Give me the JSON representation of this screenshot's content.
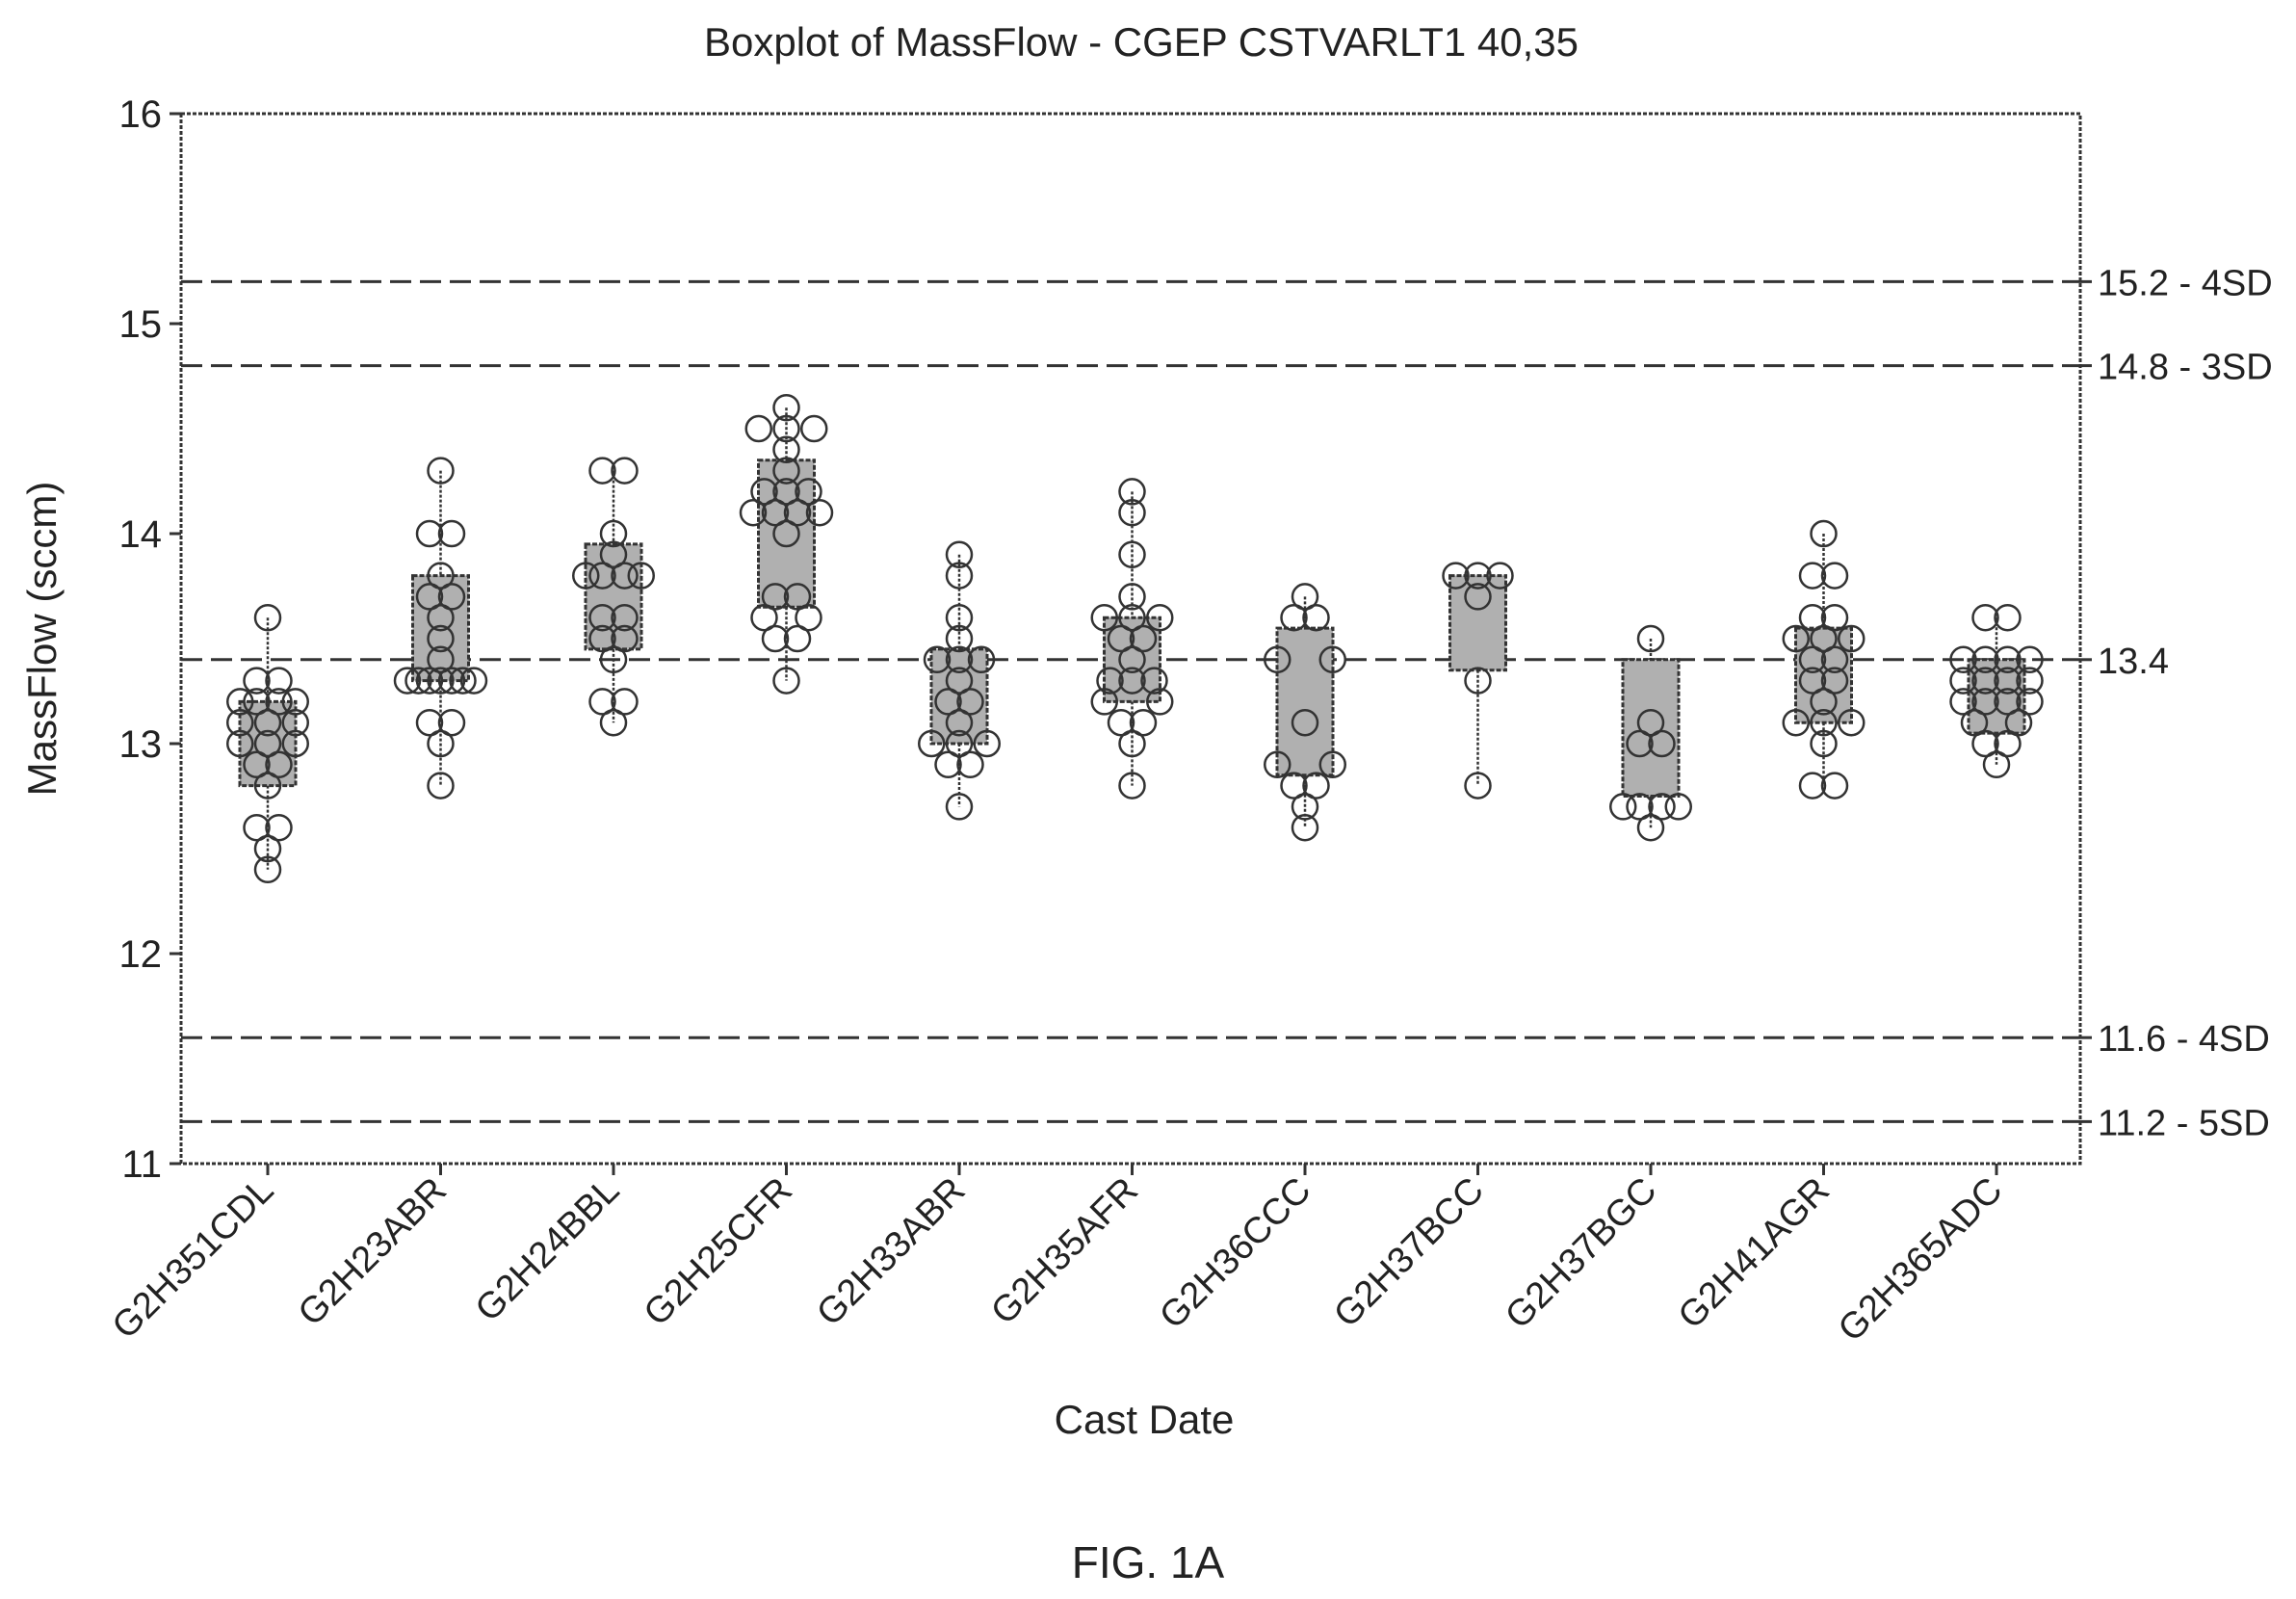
{
  "figure_label": "FIG. 1A",
  "chart_data": {
    "type": "boxplot",
    "title": "Boxplot of MassFlow - CGEP CSTVARLT1 40,35",
    "xlabel": "Cast Date",
    "ylabel": "MassFlow (sccm)",
    "ylim": [
      11,
      16
    ],
    "yticks": [
      11,
      12,
      13,
      14,
      15,
      16
    ],
    "grid": false,
    "categories": [
      "G2H351CDL",
      "G2H23ABR",
      "G2H24BBL",
      "G2H25CFR",
      "G2H33ABR",
      "G2H35AFR",
      "G2H36CCC",
      "G2H37BCC",
      "G2H37BGC",
      "G2H41AGR",
      "G2H365ADC"
    ],
    "reference_lines": [
      {
        "value": 15.2,
        "label": "15.2 - 4SD"
      },
      {
        "value": 14.8,
        "label": "14.8 - 3SD"
      },
      {
        "value": 13.4,
        "label": "13.4"
      },
      {
        "value": 11.6,
        "label": "11.6 - 4SD"
      },
      {
        "value": 11.2,
        "label": "11.2 - 5SD"
      }
    ],
    "boxes": [
      {
        "q1": 12.8,
        "q3": 13.2,
        "whisker_low": 12.4,
        "whisker_high": 13.6,
        "points": [
          [
            0,
            13.6
          ],
          [
            -0.1,
            13.3
          ],
          [
            0.1,
            13.3
          ],
          [
            -0.25,
            13.2
          ],
          [
            -0.1,
            13.2
          ],
          [
            0.1,
            13.2
          ],
          [
            0.25,
            13.2
          ],
          [
            -0.25,
            13.1
          ],
          [
            0,
            13.1
          ],
          [
            0.25,
            13.1
          ],
          [
            -0.25,
            13.0
          ],
          [
            0,
            13.0
          ],
          [
            0.25,
            13.0
          ],
          [
            -0.1,
            12.9
          ],
          [
            0.1,
            12.9
          ],
          [
            0,
            12.8
          ],
          [
            -0.1,
            12.6
          ],
          [
            0.1,
            12.6
          ],
          [
            0,
            12.5
          ],
          [
            0,
            12.4
          ]
        ]
      },
      {
        "q1": 13.3,
        "q3": 13.8,
        "whisker_low": 12.8,
        "whisker_high": 14.3,
        "points": [
          [
            0,
            14.3
          ],
          [
            -0.1,
            14.0
          ],
          [
            0.1,
            14.0
          ],
          [
            0,
            13.8
          ],
          [
            -0.1,
            13.7
          ],
          [
            0.1,
            13.7
          ],
          [
            0,
            13.6
          ],
          [
            0,
            13.5
          ],
          [
            0,
            13.4
          ],
          [
            -0.3,
            13.3
          ],
          [
            -0.2,
            13.3
          ],
          [
            -0.1,
            13.3
          ],
          [
            0,
            13.3
          ],
          [
            0.1,
            13.3
          ],
          [
            0.2,
            13.3
          ],
          [
            0.3,
            13.3
          ],
          [
            -0.1,
            13.1
          ],
          [
            0.1,
            13.1
          ],
          [
            0,
            13.0
          ],
          [
            0,
            12.8
          ]
        ]
      },
      {
        "q1": 13.45,
        "q3": 13.95,
        "whisker_low": 13.1,
        "whisker_high": 14.3,
        "points": [
          [
            -0.1,
            14.3
          ],
          [
            0.1,
            14.3
          ],
          [
            0,
            14.0
          ],
          [
            0,
            13.9
          ],
          [
            -0.25,
            13.8
          ],
          [
            -0.1,
            13.8
          ],
          [
            0.1,
            13.8
          ],
          [
            0.25,
            13.8
          ],
          [
            -0.1,
            13.6
          ],
          [
            0.1,
            13.6
          ],
          [
            -0.1,
            13.5
          ],
          [
            0.1,
            13.5
          ],
          [
            0,
            13.4
          ],
          [
            -0.1,
            13.2
          ],
          [
            0.1,
            13.2
          ],
          [
            0,
            13.1
          ]
        ]
      },
      {
        "q1": 13.65,
        "q3": 14.35,
        "whisker_low": 13.3,
        "whisker_high": 14.6,
        "points": [
          [
            0,
            14.6
          ],
          [
            -0.25,
            14.5
          ],
          [
            0,
            14.5
          ],
          [
            0.25,
            14.5
          ],
          [
            0,
            14.4
          ],
          [
            0,
            14.3
          ],
          [
            -0.2,
            14.2
          ],
          [
            0,
            14.2
          ],
          [
            0.2,
            14.2
          ],
          [
            -0.3,
            14.1
          ],
          [
            -0.1,
            14.1
          ],
          [
            0.1,
            14.1
          ],
          [
            0.3,
            14.1
          ],
          [
            0,
            14.0
          ],
          [
            -0.1,
            13.7
          ],
          [
            0.1,
            13.7
          ],
          [
            -0.2,
            13.6
          ],
          [
            0.2,
            13.6
          ],
          [
            -0.1,
            13.5
          ],
          [
            0.1,
            13.5
          ],
          [
            0,
            13.3
          ]
        ]
      },
      {
        "q1": 13.0,
        "q3": 13.45,
        "whisker_low": 12.7,
        "whisker_high": 13.9,
        "points": [
          [
            0,
            13.9
          ],
          [
            0,
            13.8
          ],
          [
            0,
            13.6
          ],
          [
            0,
            13.5
          ],
          [
            -0.2,
            13.4
          ],
          [
            0,
            13.4
          ],
          [
            0.2,
            13.4
          ],
          [
            0,
            13.3
          ],
          [
            -0.1,
            13.2
          ],
          [
            0.1,
            13.2
          ],
          [
            0,
            13.1
          ],
          [
            -0.25,
            13.0
          ],
          [
            0,
            13.0
          ],
          [
            0.25,
            13.0
          ],
          [
            -0.1,
            12.9
          ],
          [
            0.1,
            12.9
          ],
          [
            0,
            12.7
          ]
        ]
      },
      {
        "q1": 13.2,
        "q3": 13.6,
        "whisker_low": 12.8,
        "whisker_high": 14.2,
        "points": [
          [
            0,
            14.2
          ],
          [
            0,
            14.1
          ],
          [
            0,
            13.9
          ],
          [
            0,
            13.7
          ],
          [
            -0.25,
            13.6
          ],
          [
            0,
            13.6
          ],
          [
            0.25,
            13.6
          ],
          [
            -0.1,
            13.5
          ],
          [
            0.1,
            13.5
          ],
          [
            0,
            13.4
          ],
          [
            -0.2,
            13.3
          ],
          [
            0,
            13.3
          ],
          [
            0.2,
            13.3
          ],
          [
            -0.25,
            13.2
          ],
          [
            0.25,
            13.2
          ],
          [
            -0.1,
            13.1
          ],
          [
            0.1,
            13.1
          ],
          [
            0,
            13.0
          ],
          [
            0,
            12.8
          ]
        ]
      },
      {
        "q1": 12.85,
        "q3": 13.55,
        "whisker_low": 12.6,
        "whisker_high": 13.7,
        "points": [
          [
            0,
            13.7
          ],
          [
            -0.1,
            13.6
          ],
          [
            0.1,
            13.6
          ],
          [
            -0.25,
            13.4
          ],
          [
            0.25,
            13.4
          ],
          [
            0,
            13.1
          ],
          [
            -0.25,
            12.9
          ],
          [
            0.25,
            12.9
          ],
          [
            -0.1,
            12.8
          ],
          [
            0.1,
            12.8
          ],
          [
            0,
            12.7
          ],
          [
            0,
            12.6
          ]
        ]
      },
      {
        "q1": 13.35,
        "q3": 13.8,
        "whisker_low": 12.8,
        "whisker_high": 13.8,
        "points": [
          [
            -0.2,
            13.8
          ],
          [
            0,
            13.8
          ],
          [
            0.2,
            13.8
          ],
          [
            0,
            13.7
          ],
          [
            0,
            13.3
          ],
          [
            0,
            12.8
          ]
        ]
      },
      {
        "q1": 12.75,
        "q3": 13.4,
        "whisker_low": 12.6,
        "whisker_high": 13.5,
        "points": [
          [
            0,
            13.5
          ],
          [
            0,
            13.1
          ],
          [
            -0.1,
            13.0
          ],
          [
            0.1,
            13.0
          ],
          [
            -0.25,
            12.7
          ],
          [
            -0.1,
            12.7
          ],
          [
            0.1,
            12.7
          ],
          [
            0.25,
            12.7
          ],
          [
            0,
            12.6
          ]
        ]
      },
      {
        "q1": 13.1,
        "q3": 13.55,
        "whisker_low": 12.8,
        "whisker_high": 14.0,
        "points": [
          [
            0,
            14.0
          ],
          [
            -0.1,
            13.8
          ],
          [
            0.1,
            13.8
          ],
          [
            -0.1,
            13.6
          ],
          [
            0.1,
            13.6
          ],
          [
            -0.25,
            13.5
          ],
          [
            0,
            13.5
          ],
          [
            0.25,
            13.5
          ],
          [
            -0.1,
            13.4
          ],
          [
            0.1,
            13.4
          ],
          [
            -0.1,
            13.3
          ],
          [
            0.1,
            13.3
          ],
          [
            0,
            13.2
          ],
          [
            -0.25,
            13.1
          ],
          [
            0,
            13.1
          ],
          [
            0.25,
            13.1
          ],
          [
            0,
            13.0
          ],
          [
            -0.1,
            12.8
          ],
          [
            0.1,
            12.8
          ]
        ]
      },
      {
        "q1": 13.05,
        "q3": 13.4,
        "whisker_low": 12.9,
        "whisker_high": 13.6,
        "points": [
          [
            -0.1,
            13.6
          ],
          [
            0.1,
            13.6
          ],
          [
            -0.3,
            13.4
          ],
          [
            -0.1,
            13.4
          ],
          [
            0.1,
            13.4
          ],
          [
            0.3,
            13.4
          ],
          [
            -0.3,
            13.3
          ],
          [
            -0.1,
            13.3
          ],
          [
            0.1,
            13.3
          ],
          [
            0.3,
            13.3
          ],
          [
            -0.3,
            13.2
          ],
          [
            -0.1,
            13.2
          ],
          [
            0.1,
            13.2
          ],
          [
            0.3,
            13.2
          ],
          [
            -0.2,
            13.1
          ],
          [
            0.2,
            13.1
          ],
          [
            -0.1,
            13.0
          ],
          [
            0.1,
            13.0
          ],
          [
            0,
            12.9
          ]
        ]
      }
    ]
  }
}
